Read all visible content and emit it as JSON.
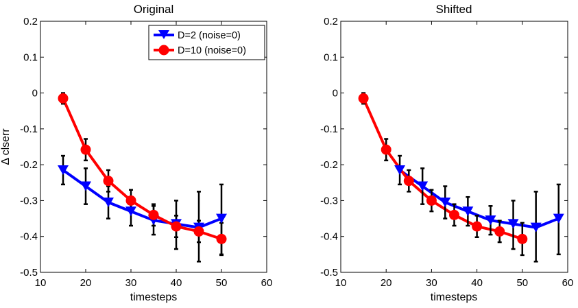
{
  "chart_data": [
    {
      "type": "line",
      "title": "Original",
      "xlabel": "timesteps",
      "ylabel": "Δ clserr",
      "xlim": [
        10,
        60
      ],
      "ylim": [
        -0.5,
        0.2
      ],
      "xticks": [
        10,
        20,
        30,
        40,
        50,
        60
      ],
      "yticks": [
        -0.5,
        -0.4,
        -0.3,
        -0.2,
        -0.1,
        0,
        0.1,
        0.2
      ],
      "xtick_labels": [
        "10",
        "20",
        "30",
        "40",
        "50",
        "60"
      ],
      "ytick_labels": [
        "-0.5",
        "-0.4",
        "-0.3",
        "-0.2",
        "-0.1",
        "0",
        "0.1",
        "0.2"
      ],
      "grid": false,
      "legend_position": "top-right",
      "series": [
        {
          "name": "D=2 (noise=0)",
          "color": "#0000ff",
          "marker": "triangle-down",
          "x": [
            15,
            20,
            25,
            30,
            35,
            40,
            45,
            50
          ],
          "y": [
            -0.215,
            -0.26,
            -0.305,
            -0.33,
            -0.355,
            -0.365,
            -0.375,
            -0.35
          ],
          "error_lower": [
            0.04,
            0.05,
            0.045,
            0.04,
            0.04,
            0.07,
            0.095,
            0.1
          ],
          "error_upper": [
            0.04,
            0.05,
            0.045,
            0.04,
            0.04,
            0.065,
            0.1,
            0.095
          ]
        },
        {
          "name": "D=10 (noise=0)",
          "color": "#ff0000",
          "marker": "circle",
          "x": [
            15,
            20,
            25,
            30,
            35,
            40,
            45,
            50
          ],
          "y": [
            -0.015,
            -0.158,
            -0.245,
            -0.3,
            -0.34,
            -0.372,
            -0.386,
            -0.407
          ],
          "error_lower": [
            0.015,
            0.03,
            0.03,
            0.03,
            0.03,
            0.03,
            0.03,
            0.045
          ],
          "error_upper": [
            0.015,
            0.03,
            0.03,
            0.03,
            0.03,
            0.03,
            0.03,
            0.045
          ]
        }
      ]
    },
    {
      "type": "line",
      "title": "Shifted",
      "xlabel": "timesteps",
      "ylabel": "",
      "xlim": [
        10,
        60
      ],
      "ylim": [
        -0.5,
        0.2
      ],
      "xticks": [
        10,
        20,
        30,
        40,
        50,
        60
      ],
      "yticks": [
        -0.5,
        -0.4,
        -0.3,
        -0.2,
        -0.1,
        0,
        0.1,
        0.2
      ],
      "xtick_labels": [
        "10",
        "20",
        "30",
        "40",
        "50",
        "60"
      ],
      "ytick_labels": [
        "-0.5",
        "-0.4",
        "-0.3",
        "-0.2",
        "-0.1",
        "0",
        "0.1",
        "0.2"
      ],
      "grid": false,
      "legend_position": "none",
      "series": [
        {
          "name": "D=2 (noise=0)",
          "color": "#0000ff",
          "marker": "triangle-down",
          "x": [
            23,
            28,
            33,
            38,
            43,
            48,
            53,
            58
          ],
          "y": [
            -0.215,
            -0.26,
            -0.305,
            -0.33,
            -0.355,
            -0.365,
            -0.375,
            -0.35
          ],
          "error_lower": [
            0.04,
            0.05,
            0.045,
            0.04,
            0.04,
            0.07,
            0.095,
            0.1
          ],
          "error_upper": [
            0.04,
            0.05,
            0.045,
            0.04,
            0.04,
            0.065,
            0.1,
            0.095
          ]
        },
        {
          "name": "D=10 (noise=0)",
          "color": "#ff0000",
          "marker": "circle",
          "x": [
            15,
            20,
            25,
            30,
            35,
            40,
            45,
            50
          ],
          "y": [
            -0.015,
            -0.158,
            -0.245,
            -0.3,
            -0.34,
            -0.372,
            -0.386,
            -0.407
          ],
          "error_lower": [
            0.015,
            0.03,
            0.03,
            0.03,
            0.03,
            0.03,
            0.03,
            0.045
          ],
          "error_upper": [
            0.015,
            0.03,
            0.03,
            0.03,
            0.03,
            0.03,
            0.03,
            0.045
          ]
        }
      ]
    }
  ]
}
